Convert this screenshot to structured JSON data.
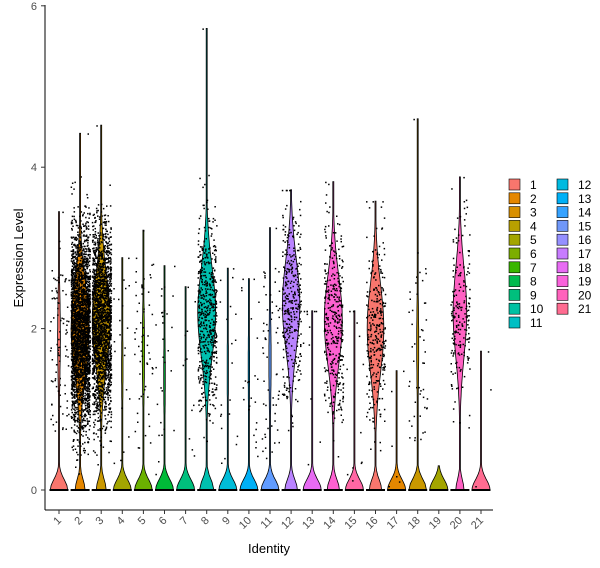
{
  "chart_data": {
    "type": "violin",
    "xlabel": "Identity",
    "ylabel": "Expression Level",
    "ylim": [
      -0.2,
      6
    ],
    "yticks": [
      0,
      2,
      4,
      6
    ],
    "grid": false,
    "legend_position": "right",
    "categories": [
      "1",
      "2",
      "3",
      "4",
      "5",
      "6",
      "7",
      "8",
      "9",
      "10",
      "11",
      "12",
      "13",
      "14",
      "15",
      "16",
      "17",
      "18",
      "19",
      "20",
      "21"
    ],
    "colors": [
      "#F8766D",
      "#E58700",
      "#C99800",
      "#A3A500",
      "#6BB100",
      "#00BA38",
      "#00BF7D",
      "#00C0AF",
      "#00BCD8",
      "#00B0F6",
      "#619CFF",
      "#B983FF",
      "#E76BF3",
      "#FD61D1",
      "#FF67A4",
      "#F8766D",
      "#E58700",
      "#C99800",
      "#A3A500",
      "#FF61C3",
      "#FF6C91"
    ],
    "legend_colors": [
      "#F8766D",
      "#E58700",
      "#D89000",
      "#B8A000",
      "#A3A500",
      "#7CAE00",
      "#39B600",
      "#00BB4E",
      "#00BF7D",
      "#00C1A3",
      "#00BFC4",
      "#00BAE0",
      "#00B0F6",
      "#35A2FF",
      "#6F97F9",
      "#9590FF",
      "#C77CFF",
      "#E76BF3",
      "#FA62DB",
      "#FF62BC",
      "#FF6C91"
    ],
    "series": [
      {
        "name": "1",
        "max": 3.45,
        "positive_median": 1.9,
        "positive_count": 90,
        "zero_fraction": 0.97
      },
      {
        "name": "2",
        "max": 4.42,
        "positive_median": 2.0,
        "positive_count": 2600,
        "zero_fraction": 0.55
      },
      {
        "name": "3",
        "max": 4.52,
        "positive_median": 2.1,
        "positive_count": 1900,
        "zero_fraction": 0.55
      },
      {
        "name": "4",
        "max": 2.88,
        "positive_median": 1.5,
        "positive_count": 22,
        "zero_fraction": 0.99
      },
      {
        "name": "5",
        "max": 3.22,
        "positive_median": 1.7,
        "positive_count": 60,
        "zero_fraction": 0.98
      },
      {
        "name": "6",
        "max": 2.78,
        "positive_median": 1.4,
        "positive_count": 30,
        "zero_fraction": 0.99
      },
      {
        "name": "7",
        "max": 2.52,
        "positive_median": 1.3,
        "positive_count": 12,
        "zero_fraction": 0.99
      },
      {
        "name": "8",
        "max": 5.72,
        "positive_median": 2.2,
        "positive_count": 520,
        "zero_fraction": 0.8
      },
      {
        "name": "9",
        "max": 2.75,
        "positive_median": 1.5,
        "positive_count": 20,
        "zero_fraction": 0.99
      },
      {
        "name": "10",
        "max": 2.62,
        "positive_median": 1.5,
        "positive_count": 24,
        "zero_fraction": 0.99
      },
      {
        "name": "11",
        "max": 3.25,
        "positive_median": 1.6,
        "positive_count": 60,
        "zero_fraction": 0.98
      },
      {
        "name": "12",
        "max": 3.72,
        "positive_median": 2.3,
        "positive_count": 330,
        "zero_fraction": 0.7
      },
      {
        "name": "13",
        "max": 2.22,
        "positive_median": 1.3,
        "positive_count": 12,
        "zero_fraction": 0.99
      },
      {
        "name": "14",
        "max": 3.82,
        "positive_median": 2.1,
        "positive_count": 360,
        "zero_fraction": 0.68
      },
      {
        "name": "15",
        "max": 2.22,
        "positive_median": 1.3,
        "positive_count": 12,
        "zero_fraction": 0.99
      },
      {
        "name": "16",
        "max": 3.58,
        "positive_median": 2.0,
        "positive_count": 300,
        "zero_fraction": 0.68
      },
      {
        "name": "17",
        "max": 1.48,
        "positive_median": 0.9,
        "positive_count": 6,
        "zero_fraction": 0.99
      },
      {
        "name": "18",
        "max": 4.6,
        "positive_median": 1.8,
        "positive_count": 50,
        "zero_fraction": 0.98
      },
      {
        "name": "19",
        "max": 0.0,
        "positive_median": 0.0,
        "positive_count": 0,
        "zero_fraction": 1.0
      },
      {
        "name": "20",
        "max": 3.88,
        "positive_median": 2.2,
        "positive_count": 200,
        "zero_fraction": 0.45
      },
      {
        "name": "21",
        "max": 1.72,
        "positive_median": 0.9,
        "positive_count": 3,
        "zero_fraction": 0.99
      }
    ]
  }
}
